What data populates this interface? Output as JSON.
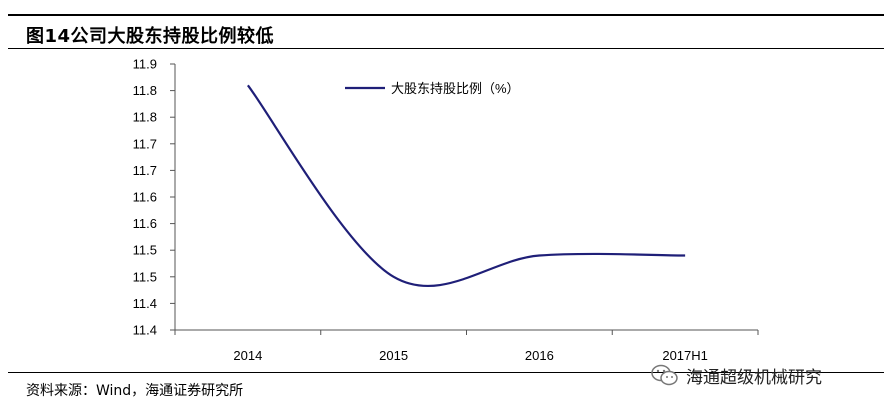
{
  "figure": {
    "title": "图14公司大股东持股比例较低",
    "source": "资料来源：Wind，海通证券研究所",
    "watermark": "海通超级机械研究",
    "watermark_icon": "wechat-icon"
  },
  "chart_data": {
    "type": "line",
    "categories": [
      "2014",
      "2015",
      "2016",
      "2017H1"
    ],
    "series": [
      {
        "name": "大股东持股比例（%）",
        "values": [
          11.86,
          11.5,
          11.54,
          11.54
        ],
        "color": "#1f1f78"
      }
    ],
    "y_tick_labels": [
      "11.9",
      "11.8",
      "11.8",
      "11.7",
      "11.7",
      "11.6",
      "11.6",
      "11.5",
      "11.5",
      "11.4",
      "11.4"
    ],
    "ylim": [
      11.4,
      11.9
    ],
    "grid": false,
    "legend_position": "top-center",
    "title": "",
    "xlabel": "",
    "ylabel": ""
  }
}
